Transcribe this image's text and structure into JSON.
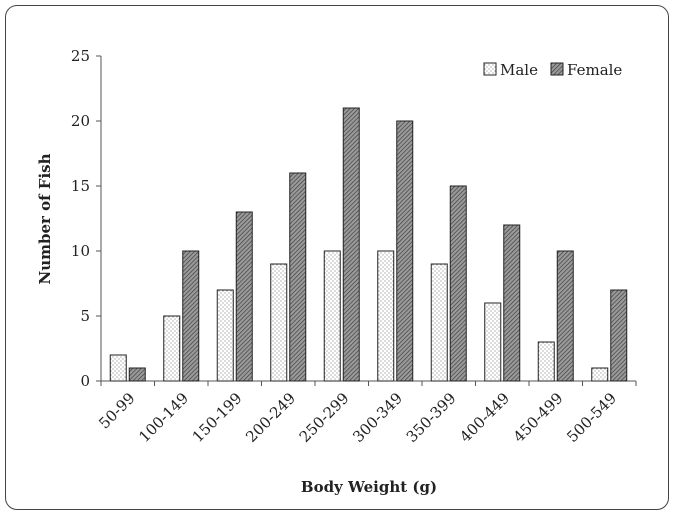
{
  "chart_data": {
    "type": "bar",
    "categories": [
      "50-99",
      "100-149",
      "150-199",
      "200-249",
      "250-299",
      "300-349",
      "350-399",
      "400-449",
      "450-499",
      "500-549"
    ],
    "series": [
      {
        "name": "Male",
        "values": [
          2,
          5,
          7,
          9,
          10,
          10,
          9,
          6,
          3,
          1
        ],
        "pattern": "dotted"
      },
      {
        "name": "Female",
        "values": [
          1,
          10,
          13,
          16,
          21,
          20,
          15,
          12,
          10,
          7
        ],
        "pattern": "hatched"
      }
    ],
    "title": "",
    "xlabel": "Body Weight (g)",
    "ylabel": "Number of Fish",
    "ylim": [
      0,
      25
    ],
    "yticks": [
      0,
      5,
      10,
      15,
      20,
      25
    ],
    "grid": false,
    "legend_position": "top-right"
  }
}
